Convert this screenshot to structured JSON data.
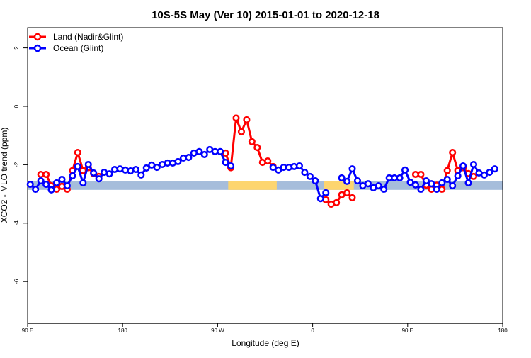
{
  "chart_data": {
    "type": "line",
    "title": "10S-5S May (Ver 10)   2015-01-01 to 2020-12-18",
    "xlabel": "Longitude (deg E)",
    "ylabel": "XCO2 - MLO trend (ppm)",
    "xlim": [
      90,
      540
    ],
    "ylim": [
      -7.6,
      2.7
    ],
    "x_ticks": [
      {
        "value": 90,
        "label": "90 E"
      },
      {
        "value": 180,
        "label": "180"
      },
      {
        "value": 270,
        "label": "90 W"
      },
      {
        "value": 360,
        "label": "0"
      },
      {
        "value": 450,
        "label": "90 E"
      },
      {
        "value": 540,
        "label": "180"
      }
    ],
    "y_ticks": [
      {
        "value": 2,
        "label": "2"
      },
      {
        "value": 0,
        "label": "0"
      },
      {
        "value": -2,
        "label": "-2"
      },
      {
        "value": -4,
        "label": "-4"
      },
      {
        "value": -6,
        "label": "-6"
      }
    ],
    "legend_position": "top-left",
    "surface_band": {
      "y_range": [
        -2.86,
        -2.55
      ],
      "ocean_color": "#a6bddb",
      "land_color": "#fdd56f",
      "land_ranges": [
        [
          280,
          326
        ],
        [
          371,
          399
        ]
      ]
    },
    "series": [
      {
        "name": "Land (Nadir&Glint)",
        "color": "#ff0000",
        "segments": [
          {
            "x0": 102.5,
            "values": [
              -2.33,
              -2.33,
              -2.72,
              -2.84,
              -2.74,
              -2.84,
              -2.2,
              -1.58,
              -2.2,
              -2.1,
              -2.3,
              -2.4
            ]
          },
          {
            "x0": 277.5,
            "values": [
              -1.6,
              -2.1,
              -0.4,
              -0.87,
              -0.46,
              -1.21,
              -1.41,
              -1.92,
              -1.87,
              -2.06
            ]
          },
          {
            "x0": 372.5,
            "values": [
              -3.2,
              -3.35,
              -3.3,
              -3.03,
              -2.96,
              -3.13
            ]
          },
          {
            "x0": 457.5,
            "values": [
              -2.33,
              -2.33,
              -2.7,
              -2.84,
              -2.7,
              -2.84,
              -2.2,
              -1.58,
              -2.2,
              -2.1,
              -2.3,
              -2.4
            ]
          }
        ]
      },
      {
        "name": "Ocean (Glint)",
        "color": "#0000ff",
        "segments": [
          {
            "x0": 92.5,
            "values": [
              -2.67,
              -2.84,
              -2.55,
              -2.67,
              -2.86,
              -2.62,
              -2.5,
              -2.72,
              -2.38,
              -2.06,
              -2.62,
              -1.99,
              -2.28,
              -2.48,
              -2.26,
              -2.31,
              -2.16,
              -2.14,
              -2.18,
              -2.21,
              -2.16,
              -2.35,
              -2.11,
              -2.01,
              -2.09,
              -1.99,
              -1.94,
              -1.94,
              -1.89,
              -1.77,
              -1.75,
              -1.6,
              -1.55,
              -1.65,
              -1.48,
              -1.55,
              -1.55,
              -1.92,
              -2.04
            ]
          },
          {
            "x0": 322.5,
            "values": [
              -2.09,
              -2.18,
              -2.09,
              -2.09,
              -2.06,
              -2.04,
              -2.26,
              -2.4,
              -2.55,
              -3.16,
              -2.96
            ]
          },
          {
            "x0": 387.5,
            "values": [
              -2.45,
              -2.57,
              -2.14,
              -2.55,
              -2.72,
              -2.65,
              -2.79,
              -2.72,
              -2.84,
              -2.45,
              -2.45,
              -2.45,
              -2.18,
              -2.6,
              -2.69,
              -2.84,
              -2.55,
              -2.65,
              -2.84,
              -2.62,
              -2.5,
              -2.72,
              -2.38,
              -2.04,
              -2.62,
              -1.99,
              -2.28,
              -2.35,
              -2.26,
              -2.14
            ]
          }
        ]
      }
    ]
  }
}
